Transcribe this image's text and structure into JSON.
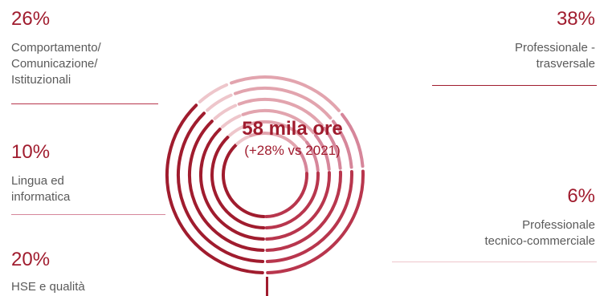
{
  "chart_data": {
    "type": "pie",
    "center": {
      "title": "58 mila ore",
      "subtitle": "(+28% vs 2021)"
    },
    "slices": [
      {
        "label": "Professionale - trasversale",
        "label_lines": "Professionale -\ntrasversale",
        "value": 38,
        "value_text": "38%",
        "color": "#a01c2e"
      },
      {
        "label": "Professionale tecnico-commerciale",
        "label_lines": "Professionale\ntecnico-commerciale",
        "value": 6,
        "value_text": "6%",
        "color": "#eec6cb"
      },
      {
        "label": "HSE e qualità",
        "label_lines": "HSE e qualità",
        "value": 20,
        "value_text": "20%",
        "color": "#e2a4ae"
      },
      {
        "label": "Lingua ed informatica",
        "label_lines": "Lingua ed\ninformatica",
        "value": 10,
        "value_text": "10%",
        "color": "#d6869a"
      },
      {
        "label": "Comportamento/ Comunicazione/ Istituzionali",
        "label_lines": "Comportamento/\nComunicazione/\nIstituzionali",
        "value": 26,
        "value_text": "26%",
        "color": "#b8364d"
      }
    ]
  }
}
